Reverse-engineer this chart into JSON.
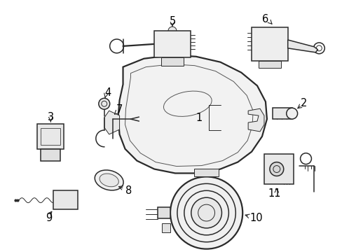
{
  "background_color": "#ffffff",
  "line_color": "#2a2a2a",
  "label_color": "#000000",
  "fig_width": 4.89,
  "fig_height": 3.6,
  "dpi": 100,
  "label_fontsize": 10.5,
  "lw_main": 1.1,
  "lw_thin": 0.7,
  "lw_thick": 1.6
}
